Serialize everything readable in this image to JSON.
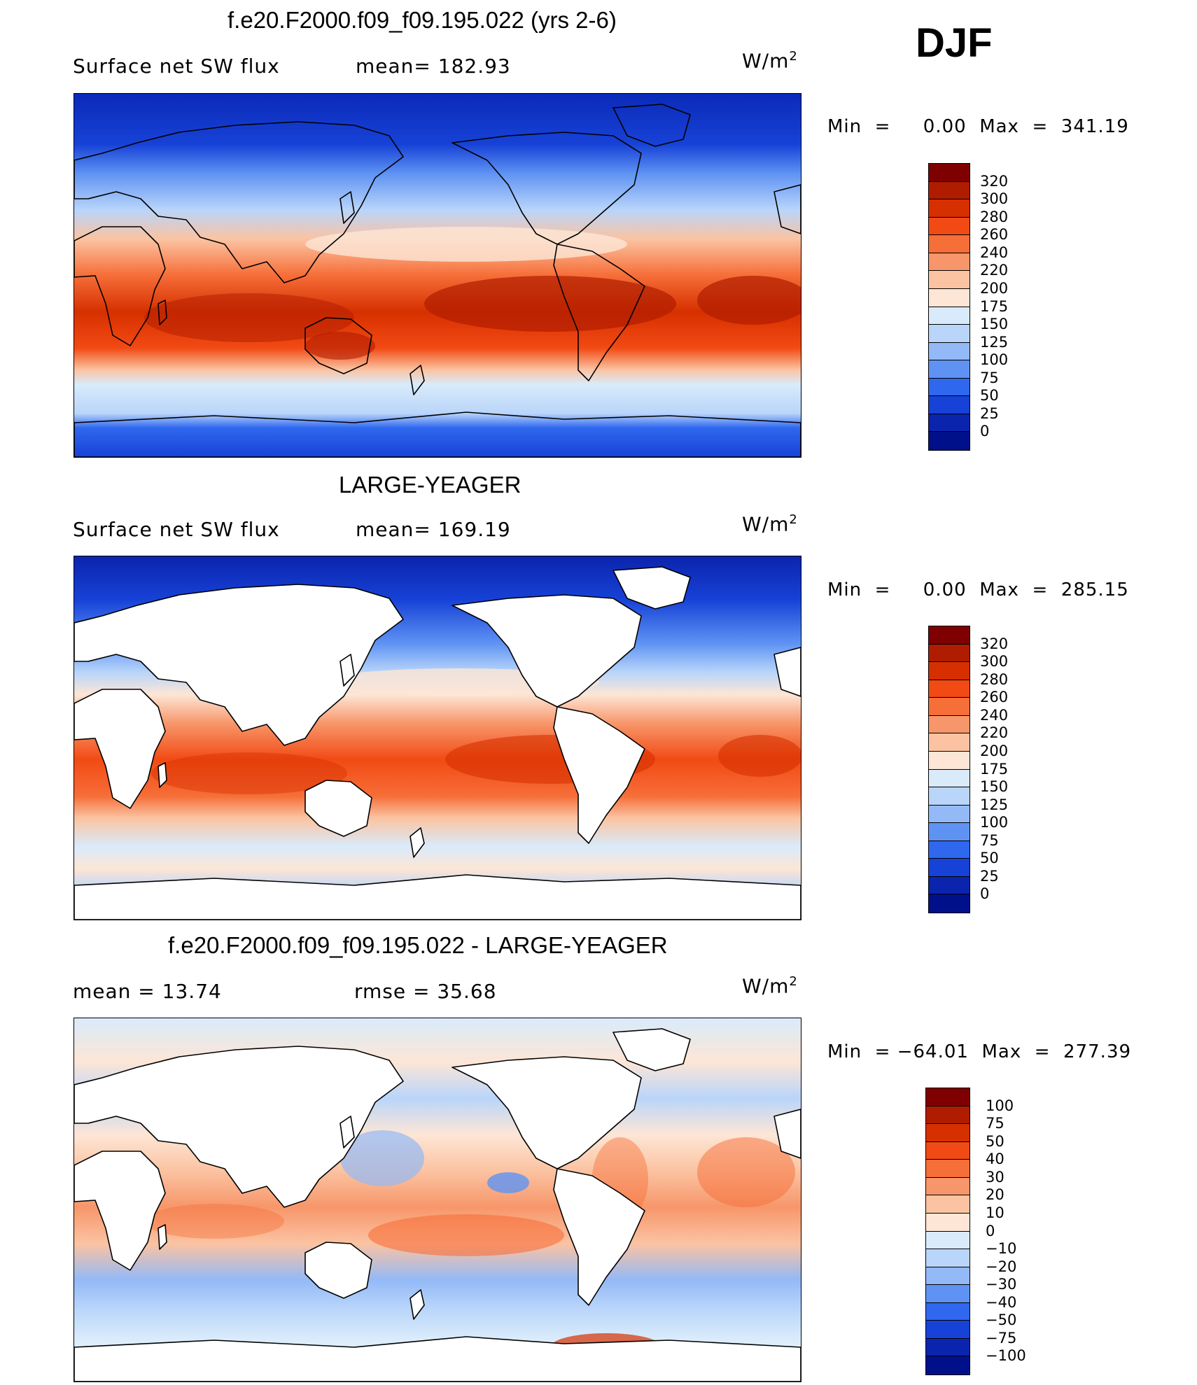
{
  "season": "DJF",
  "panels": [
    {
      "title": "f.e20.F2000.f09_f09.195.022 (yrs 2-6)",
      "left_label": "Surface net SW flux",
      "mid_label": "mean=  182.93",
      "units": "W/m",
      "units_sup": "2",
      "minmax": "Min  =     0.00  Max  =  341.19",
      "colorbar": {
        "ticks": [
          "320",
          "300",
          "280",
          "260",
          "240",
          "220",
          "200",
          "175",
          "150",
          "125",
          "100",
          "75",
          "50",
          "25",
          "0"
        ],
        "colors": [
          "#7f0000",
          "#b01c00",
          "#d63000",
          "#f24a14",
          "#f66e38",
          "#f7966a",
          "#fbc3a2",
          "#fde6d6",
          "#d9ebfb",
          "#b9d5fa",
          "#93b9f7",
          "#5f93f3",
          "#2f67ef",
          "#1742d7",
          "#0b24ad",
          "#00108a"
        ]
      },
      "map_style": "model"
    },
    {
      "title": "LARGE-YEAGER",
      "left_label": "Surface net SW flux",
      "mid_label": "mean=  169.19",
      "units": "W/m",
      "units_sup": "2",
      "minmax": "Min  =     0.00  Max  =  285.15",
      "colorbar": {
        "ticks": [
          "320",
          "300",
          "280",
          "260",
          "240",
          "220",
          "200",
          "175",
          "150",
          "125",
          "100",
          "75",
          "50",
          "25",
          "0"
        ],
        "colors": [
          "#7f0000",
          "#b01c00",
          "#d63000",
          "#f24a14",
          "#f66e38",
          "#f7966a",
          "#fbc3a2",
          "#fde6d6",
          "#d9ebfb",
          "#b9d5fa",
          "#93b9f7",
          "#5f93f3",
          "#2f67ef",
          "#1742d7",
          "#0b24ad",
          "#00108a"
        ]
      },
      "map_style": "obs"
    },
    {
      "title": "f.e20.F2000.f09_f09.195.022 - LARGE-YEAGER",
      "left_label": "mean  =     13.74",
      "mid_label": "rmse  =     35.68",
      "units": "W/m",
      "units_sup": "2",
      "minmax": "Min  = −64.01  Max  =  277.39",
      "colorbar": {
        "ticks": [
          "100",
          "75",
          "50",
          "40",
          "30",
          "20",
          "10",
          "0",
          "−10",
          "−20",
          "−30",
          "−40",
          "−50",
          "−75",
          "−100"
        ],
        "colors": [
          "#7f0000",
          "#b01c00",
          "#d63000",
          "#f24a14",
          "#f66e38",
          "#f7966a",
          "#fbc3a2",
          "#fde6d6",
          "#d9ebfb",
          "#b9d5fa",
          "#93b9f7",
          "#5f93f3",
          "#2f67ef",
          "#1742d7",
          "#0b24ad",
          "#00108a"
        ]
      },
      "map_style": "diff"
    }
  ]
}
